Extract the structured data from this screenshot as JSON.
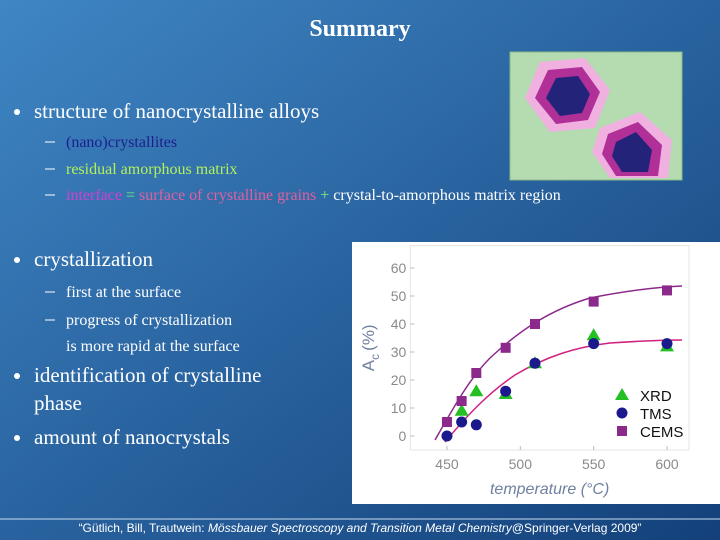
{
  "title": "Summary",
  "bullets": [
    {
      "lines": [
        "structure of nanocrystalline alloys"
      ],
      "sub": [
        {
          "segments": [
            {
              "text": "(nano)crystallites",
              "color": "#1e1e8c"
            }
          ]
        },
        {
          "segments": [
            {
              "text": "residual amorphous matrix",
              "color": "#b4f05a"
            }
          ]
        },
        {
          "segments": [
            {
              "text": "interface",
              "color": "#d040d0"
            },
            {
              "text": " = ",
              "color": "#7cf07c"
            },
            {
              "text": "surface of crystalline grains",
              "color": "#e060a0"
            },
            {
              "text": " + ",
              "color": "#7cf07c"
            },
            {
              "text": "crystal-to-amorphous matrix region",
              "color": "#ffffff"
            }
          ]
        }
      ]
    },
    {
      "lines": [
        "crystallization"
      ],
      "sub": [
        {
          "segments": [
            {
              "text": "first at the surface",
              "color": "#ffffff"
            }
          ]
        },
        {
          "segments": [
            {
              "text": "progress of crystallization",
              "color": "#ffffff"
            },
            {
              "text": "is more rapid at the surface",
              "color": "#ffffff"
            }
          ]
        }
      ]
    },
    {
      "lines": [
        "identification of crystalline",
        "phase"
      ],
      "sub": []
    },
    {
      "lines": [
        "amount of nanocrystals"
      ],
      "sub": []
    }
  ],
  "footer": {
    "normal": "“Gütlich, Bill, Trautwein: ",
    "italic": "Mössbauer Spectroscopy and Transition Metal Chemistry",
    "tail": "@Springer-Verlag 2009”"
  },
  "chart_data": {
    "type": "scatter",
    "x_label": "temperature (°C)",
    "y_label": {
      "main": "A",
      "sub": "c",
      "unit": "(%)"
    },
    "xlim": [
      425,
      615
    ],
    "xticks": [
      450,
      500,
      550,
      600
    ],
    "ylim": [
      -5,
      68
    ],
    "yticks": [
      0,
      10,
      20,
      30,
      40,
      50,
      60
    ],
    "legend": "lower right",
    "series": [
      {
        "name": "XRD",
        "color": "#22c022",
        "marker": "triangle",
        "x": [
          460,
          470,
          490,
          510,
          550,
          600
        ],
        "values": [
          9,
          16,
          15,
          26,
          36,
          32
        ]
      },
      {
        "name": "TMS",
        "color": "#1a1a8c",
        "marker": "circle",
        "x": [
          450,
          460,
          470,
          490,
          510,
          550,
          600
        ],
        "values": [
          0,
          5,
          4,
          16,
          26,
          33,
          33
        ]
      },
      {
        "name": "CEMS",
        "color": "#8b2a8b",
        "marker": "square",
        "x": [
          450,
          460,
          470,
          490,
          510,
          550,
          600
        ],
        "values": [
          5,
          12.5,
          22.5,
          31.5,
          40,
          48,
          52
        ]
      }
    ]
  }
}
